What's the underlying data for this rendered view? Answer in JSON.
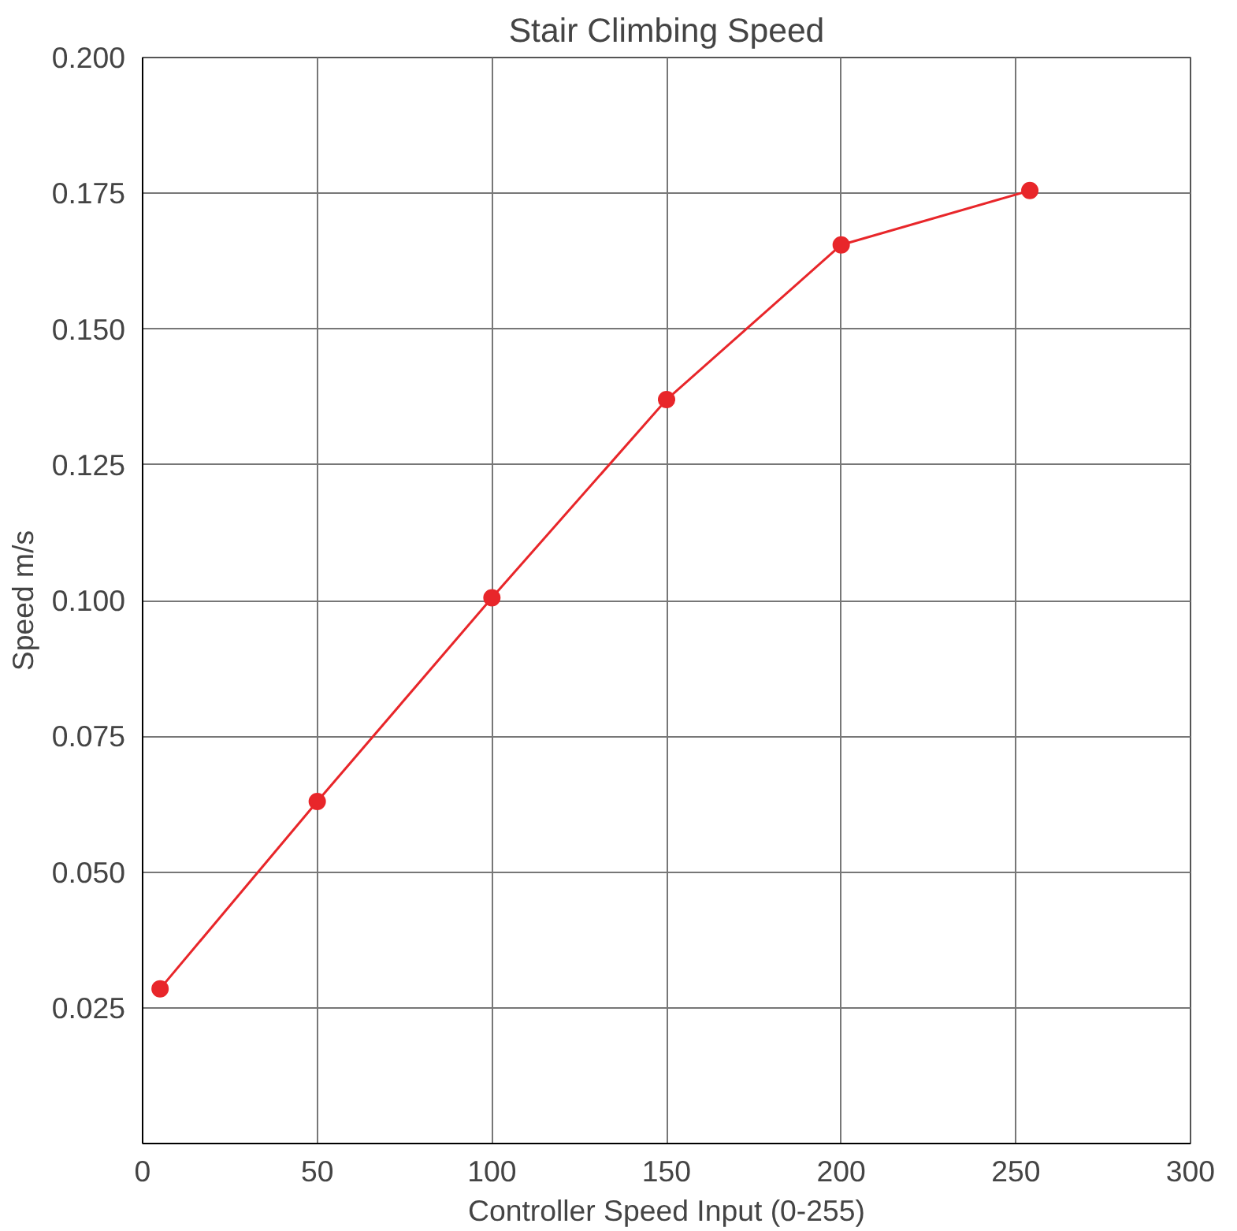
{
  "chart_data": {
    "type": "line",
    "title": "Stair Climbing Speed",
    "xlabel": "Controller Speed Input (0-255)",
    "ylabel": "Speed m/s",
    "x": [
      5,
      50,
      100,
      150,
      200,
      254
    ],
    "series": [
      {
        "color": "#e8262a",
        "values": [
          0.0285,
          0.063,
          0.1005,
          0.137,
          0.1655,
          0.1755
        ]
      }
    ],
    "xlim": [
      0,
      300
    ],
    "xticks": [
      0,
      50,
      100,
      150,
      200,
      250,
      300
    ],
    "ylim": [
      0,
      0.2
    ],
    "yticks": [
      {
        "value": 0,
        "label": null
      },
      {
        "value": 0.025,
        "label": "0.025"
      },
      {
        "value": 0.05,
        "label": "0.050"
      },
      {
        "value": 0.075,
        "label": "0.075"
      },
      {
        "value": 0.1,
        "label": "0.100"
      },
      {
        "value": 0.125,
        "label": "0.125"
      },
      {
        "value": 0.15,
        "label": "0.150"
      },
      {
        "value": 0.175,
        "label": "0.175"
      },
      {
        "value": 0.2,
        "label": "0.200"
      }
    ],
    "grid": true,
    "marker": "circle",
    "line_style": "solid"
  }
}
